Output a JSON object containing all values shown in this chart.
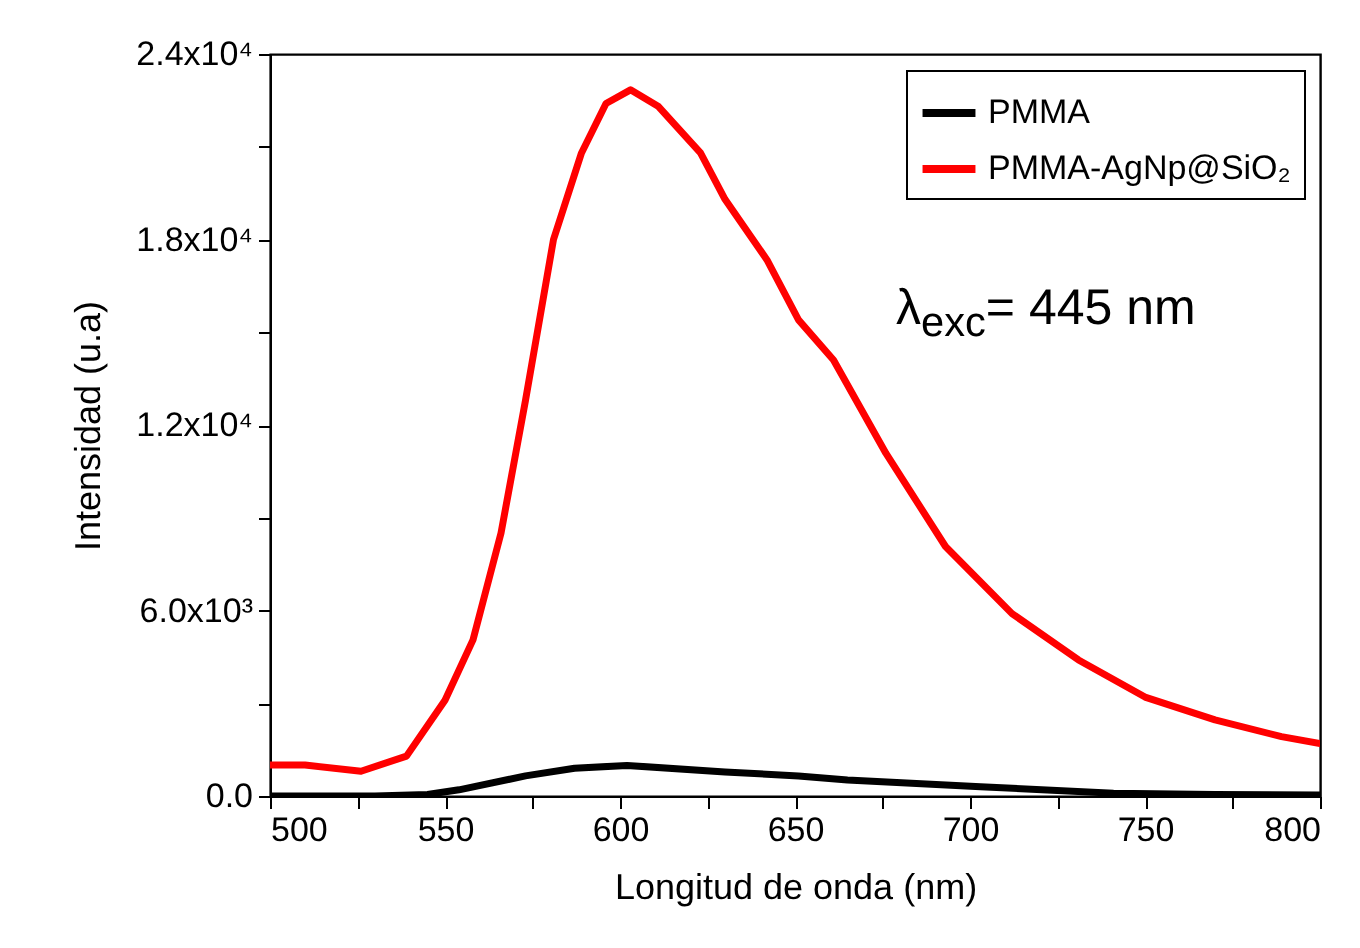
{
  "chart_data": {
    "type": "line",
    "xlabel": "Longitud de onda (nm)",
    "ylabel": "Intensidad (u.a)",
    "annotations": [
      "λ$_{exc}$= 445 nm"
    ],
    "legend": "top right",
    "xlim": [
      500,
      800
    ],
    "xticks": [
      500,
      {
        "value": 525,
        "label": null
      },
      550,
      {
        "value": 575,
        "label": null
      },
      600,
      {
        "value": 625,
        "label": null
      },
      650,
      {
        "value": 675,
        "label": null
      },
      700,
      {
        "value": 725,
        "label": null
      },
      750,
      {
        "value": 775,
        "label": null
      },
      800
    ],
    "ylim": [
      0,
      24000
    ],
    "yticks": [
      {
        "value": 0,
        "label": "0.0"
      },
      {
        "value": 3000,
        "label": null
      },
      {
        "value": 6000,
        "label": "6.0x10³"
      },
      {
        "value": 9000,
        "label": null
      },
      {
        "value": 12000,
        "label": "1.2x10⁴"
      },
      {
        "value": 15000,
        "label": null
      },
      {
        "value": 18000,
        "label": "1.8x10⁴"
      },
      {
        "value": 21000,
        "label": null
      },
      {
        "value": 24000,
        "label": "2.4x10⁴"
      }
    ],
    "series": [
      {
        "name": "PMMA",
        "color": "#000000",
        "x": [
          500,
          530,
          545,
          554,
          573,
          587,
          602,
          630,
          651,
          665,
          703,
          741,
          770,
          800
        ],
        "values": [
          0,
          0,
          50,
          200,
          650,
          900,
          990,
          780,
          650,
          520,
          300,
          90,
          50,
          30
        ]
      },
      {
        "name": "PMMA-AgNp@SiO₂",
        "color": "#ff0000",
        "x": [
          500,
          510,
          526,
          539,
          550,
          558,
          566,
          573,
          581,
          589,
          596,
          603,
          611,
          623,
          630,
          642,
          651,
          661,
          676,
          693,
          712,
          731,
          750,
          770,
          789,
          800
        ],
        "values": [
          1000,
          1000,
          800,
          1290,
          3100,
          5050,
          8500,
          12800,
          18000,
          20800,
          22400,
          22840,
          22300,
          20800,
          19300,
          17340,
          15400,
          14100,
          11080,
          8070,
          5900,
          4400,
          3200,
          2460,
          1920,
          1700
        ]
      }
    ]
  }
}
